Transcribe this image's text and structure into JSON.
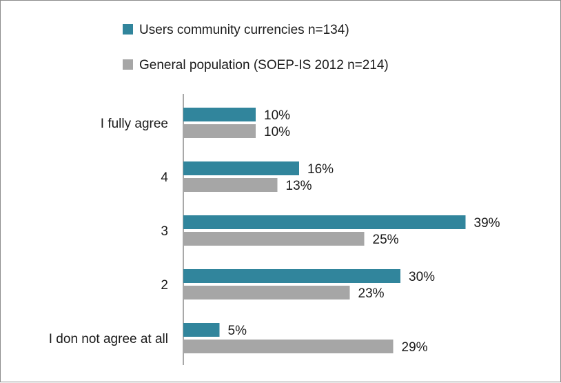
{
  "chart_data": {
    "type": "bar",
    "orientation": "horizontal",
    "categories": [
      "I fully agree",
      "4",
      "3",
      "2",
      "I don not agree at all"
    ],
    "series": [
      {
        "name": "Users community currencies n=134)",
        "color": "#31859c",
        "values": [
          10,
          16,
          39,
          30,
          5
        ],
        "labels": [
          "10%",
          "16%",
          "39%",
          "30%",
          "5%"
        ]
      },
      {
        "name": "General population (SOEP-IS 2012 n=214)",
        "color": "#a6a6a6",
        "values": [
          10,
          13,
          25,
          23,
          29
        ],
        "labels": [
          "10%",
          "13%",
          "25%",
          "23%",
          "29%"
        ]
      }
    ],
    "xlim": [
      0,
      40
    ],
    "unit": "%",
    "grid": false,
    "legend_position": "top"
  }
}
